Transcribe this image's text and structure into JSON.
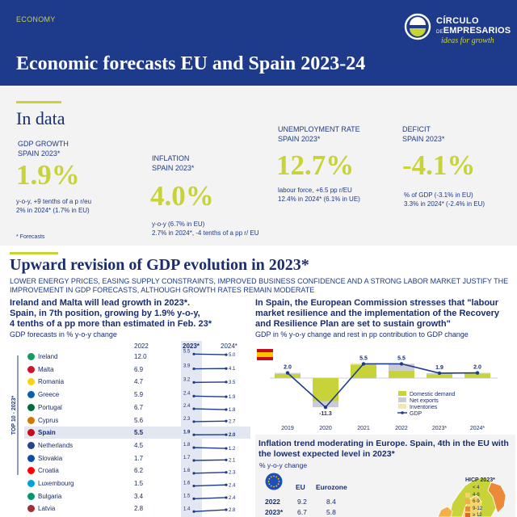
{
  "header": {
    "tag": "ECONOMY",
    "title": "Economic forecasts EU and Spain 2023-24",
    "logo_line1": "CÍRCULO",
    "logo_de": "DE",
    "logo_line2": "EMPRESARIOS",
    "logo_tagline": "ideas for growth"
  },
  "in_data": {
    "heading": "In data",
    "footnote": "* Forecasts",
    "kpis": [
      {
        "label1": "GDP GROWTH",
        "label2": "SPAIN 2023*",
        "value": "1.9%",
        "note1": "y-o-y, +9 tenths of a p r/eu",
        "note2": "2% in 2024* (1.7% in EU)"
      },
      {
        "label1": "INFLATION",
        "label2": "SPAIN 2023*",
        "value": "4.0%",
        "note1": "y-o-y (6.7% in EU)",
        "note2": "2.7% in 2024*, -4 tenths of a pp r/ EU"
      },
      {
        "label1": "UNEMPLOYMENT RATE",
        "label2": "SPAIN 2023*",
        "value": "12.7%",
        "note1": "labour force, +6.5 pp r/EU",
        "note2": "12.4% in 2024* (6.1% in UE)"
      },
      {
        "label1": "DEFICIT",
        "label2": "SPAIN 2023*",
        "value": "-4.1%",
        "note1": "% of GDP (-3.1% in EU)",
        "note2": "3.3% in 2024* (-2.4% in EU)"
      }
    ]
  },
  "section": {
    "title": "Upward revision of GDP evolution in 2023*",
    "subtitle": "Lower energy prices, easing supply constraints, improved business confidence and a strong labor market justify the improvement in GDP forecasts, although growth rates remain moderate"
  },
  "left_chart": {
    "title_line1": "Ireland and Malta will lead growth in 2023*.",
    "title_line2": "Spain, in 7th position, growing by 1.9% y-o-y,",
    "title_line3": "4 tenths of a pp more than estimated in Feb. 23*",
    "subtitle": "GDP forecasts in % y-o-y change",
    "col_2022": "2022",
    "col_2023": "2023*",
    "col_2024": "2024*",
    "top10_label": "TOP 10 - 2023*"
  },
  "right_chart": {
    "title_line1": "In Spain, the European Commission stresses that \"labour",
    "title_line2": "market resilience and the implementation of the Recovery",
    "title_line3": "and Resilience Plan are set to sustain growth\"",
    "subtitle": "GDP in % y-o-y change and rest in pp contribution to GDP change"
  },
  "inflation": {
    "title_line1": "Inflation trend moderating in Europe. Spain, 4th in the EU with",
    "title_line2": "the lowest expected level in 2023*",
    "subtitle": "% y-o-y change",
    "col_eu": "EU",
    "col_ez": "Eurozone",
    "rows": [
      {
        "year": "2022",
        "eu": "9.2",
        "ez": "8.4"
      },
      {
        "year": "2023*",
        "eu": "6.7",
        "ez": "5.8"
      }
    ],
    "legend_title": "HICP 2023*",
    "legend": [
      {
        "label": "< 4",
        "color": "#c8d33a"
      },
      {
        "label": "4-6",
        "color": "#f6d36b"
      },
      {
        "label": "6-9",
        "color": "#f2b04a"
      },
      {
        "label": "9-12",
        "color": "#ec8a3a"
      },
      {
        "label": "≥ 12",
        "color": "#e2632b"
      }
    ]
  },
  "chart_data": [
    {
      "type": "table",
      "title": "GDP forecasts in % y-o-y change",
      "columns": [
        "2022",
        "2023*",
        "2024*"
      ],
      "rows": [
        {
          "country": "Ireland",
          "v2022": "12.0",
          "v2023": "5.5",
          "v2024": "5.0",
          "n2023": 5.5,
          "n2024": 5.0,
          "flag": "#169b62",
          "top10": true
        },
        {
          "country": "Malta",
          "v2022": "6.9",
          "v2023": "3.9",
          "v2024": "4.1",
          "n2023": 3.9,
          "n2024": 4.1,
          "flag": "#cf142b",
          "top10": true
        },
        {
          "country": "Romania",
          "v2022": "4.7",
          "v2023": "3.2",
          "v2024": "3.5",
          "n2023": 3.2,
          "n2024": 3.5,
          "flag": "#fcd116",
          "top10": true
        },
        {
          "country": "Greece",
          "v2022": "5.9",
          "v2023": "2.4",
          "v2024": "1.9",
          "n2023": 2.4,
          "n2024": 1.9,
          "flag": "#0d5eaf",
          "top10": true
        },
        {
          "country": "Portugal",
          "v2022": "6.7",
          "v2023": "2.4",
          "v2024": "1.8",
          "n2023": 2.4,
          "n2024": 1.8,
          "flag": "#046a38",
          "top10": true
        },
        {
          "country": "Cyprus",
          "v2022": "5.6",
          "v2023": "2.3",
          "v2024": "2.7",
          "n2023": 2.3,
          "n2024": 2.7,
          "flag": "#d57800",
          "top10": true
        },
        {
          "country": "Spain",
          "v2022": "5.5",
          "v2023": "1.9",
          "v2024": "2.0",
          "n2023": 1.9,
          "n2024": 2.0,
          "flag": "#c60b1e",
          "top10": true,
          "highlight": true
        },
        {
          "country": "Netherlands",
          "v2022": "4.5",
          "v2023": "1.8",
          "v2024": "1.2",
          "n2023": 1.8,
          "n2024": 1.2,
          "flag": "#21468b",
          "top10": true
        },
        {
          "country": "Slovakia",
          "v2022": "1.7",
          "v2023": "1.7",
          "v2024": "2.1",
          "n2023": 1.7,
          "n2024": 2.1,
          "flag": "#0b4ea2",
          "top10": true
        },
        {
          "country": "Croatia",
          "v2022": "6.2",
          "v2023": "1.6",
          "v2024": "2.3",
          "n2023": 1.6,
          "n2024": 2.3,
          "flag": "#ff0000",
          "top10": true
        },
        {
          "country": "Luxembourg",
          "v2022": "1.5",
          "v2023": "1.6",
          "v2024": "2.4",
          "n2023": 1.6,
          "n2024": 2.4,
          "flag": "#00a1de",
          "top10": false
        },
        {
          "country": "Bulgaria",
          "v2022": "3.4",
          "v2023": "1.5",
          "v2024": "2.4",
          "n2023": 1.5,
          "n2024": 2.4,
          "flag": "#00966e",
          "top10": false
        },
        {
          "country": "Latvia",
          "v2022": "2.8",
          "v2023": "1.4",
          "v2024": "2.8",
          "n2023": 1.4,
          "n2024": 2.8,
          "flag": "#9e3039",
          "top10": false
        }
      ]
    },
    {
      "type": "bar",
      "title": "GDP in % y-o-y change and rest in pp contribution to GDP change",
      "categories": [
        "2019",
        "2020",
        "2021",
        "2022",
        "2023*",
        "2024*"
      ],
      "gdp_labels": [
        "2.0",
        "-11.3",
        "5.5",
        "5.5",
        "1.9",
        "2.0"
      ],
      "series": [
        {
          "name": "Domestic demand",
          "color": "#c8d33a",
          "values": [
            1.6,
            -8.9,
            5.2,
            2.9,
            1.5,
            1.8
          ]
        },
        {
          "name": "Net exports",
          "color": "#c9ccd6",
          "values": [
            0.4,
            -2.4,
            -0.2,
            2.6,
            0.4,
            0.2
          ]
        },
        {
          "name": "Inventories",
          "color": "#f0e8b0",
          "values": [
            0.0,
            0.0,
            0.5,
            0.0,
            0.0,
            0.0
          ]
        },
        {
          "name": "GDP",
          "color": "#1e3a8a",
          "values": [
            2.0,
            -11.3,
            5.5,
            5.5,
            1.9,
            2.0
          ]
        }
      ],
      "ylim": [
        -12,
        6.5
      ]
    }
  ]
}
